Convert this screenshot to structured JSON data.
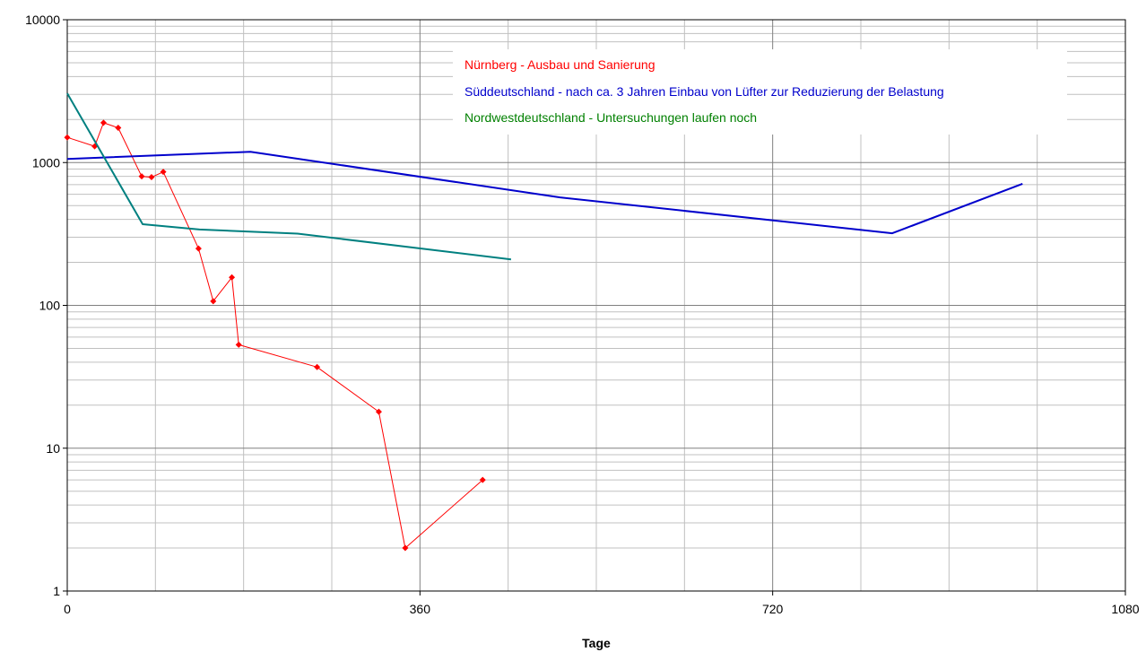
{
  "chart_data": {
    "type": "line",
    "xlabel": "Tage",
    "ylabel": "",
    "yscale": "log",
    "xlim": [
      0,
      1080
    ],
    "ylim": [
      1,
      10000
    ],
    "x_ticks": [
      "0",
      "360",
      "720",
      "1080"
    ],
    "y_ticks": [
      "1",
      "10",
      "100",
      "1000",
      "10000"
    ],
    "grid": true,
    "legend_position": "top-right",
    "series": [
      {
        "name": "Nürnberg  -  Ausbau und Sanierung",
        "color": "#ff0000",
        "markers": true,
        "points": [
          [
            0,
            1500
          ],
          [
            28,
            1300
          ],
          [
            37,
            1900
          ],
          [
            52,
            1750
          ],
          [
            76,
            800
          ],
          [
            86,
            790
          ],
          [
            98,
            860
          ],
          [
            134,
            250
          ],
          [
            149,
            107
          ],
          [
            168,
            157
          ],
          [
            175,
            53
          ],
          [
            255,
            37
          ],
          [
            318,
            18
          ],
          [
            345,
            2
          ],
          [
            424,
            6
          ]
        ]
      },
      {
        "name": "Süddeutschland  -  nach ca. 3 Jahren Einbau von Lüfter zur Reduzierung der Belastung",
        "color": "#0000cc",
        "markers": false,
        "points": [
          [
            0,
            1060
          ],
          [
            187,
            1190
          ],
          [
            503,
            570
          ],
          [
            842,
            320
          ],
          [
            975,
            710
          ]
        ]
      },
      {
        "name": "Nordwestdeutschland  -  Untersuchungen laufen noch",
        "color": "#008080",
        "legend_color": "#008000",
        "markers": false,
        "points": [
          [
            0,
            3050
          ],
          [
            77,
            370
          ],
          [
            135,
            340
          ],
          [
            235,
            318
          ],
          [
            453,
            210
          ]
        ]
      }
    ]
  }
}
